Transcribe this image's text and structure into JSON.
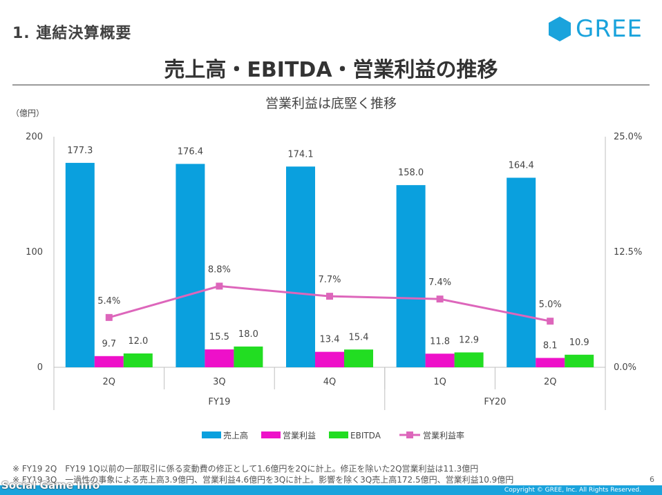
{
  "slide": {
    "section": "1. 連結決算概要",
    "title": "売上高・EBITDA・営業利益の推移",
    "logo_text": "GREE",
    "page": "6",
    "copyright": "Copyright © GREE, Inc. All Rights Reserved.",
    "watermark": "Social Game Info",
    "notes": [
      "※ FY19 2Q　FY19 1Q以前の一部取引に係る変動費の修正として1.6億円を2Qに計上。修正を除いた2Q営業利益は11.3億円",
      "※ FY19 3Q　一過性の事象による売上高3.9億円、営業利益4.6億円を3Qに計上。影響を除く3Q売上高172.5億円、営業利益10.9億円"
    ]
  },
  "chart_data": {
    "type": "bar",
    "title": "営業利益は底堅く推移",
    "ylabel": "（億円）",
    "ylim": [
      0,
      200
    ],
    "y_ticks": [
      "0",
      "100",
      "200"
    ],
    "y2lim": [
      0,
      25
    ],
    "y2_ticks": [
      "0.0%",
      "12.5%",
      "25.0%"
    ],
    "categories": [
      "2Q",
      "3Q",
      "4Q",
      "1Q",
      "2Q"
    ],
    "groups": [
      {
        "label": "FY19",
        "count": 3
      },
      {
        "label": "FY20",
        "count": 2
      }
    ],
    "series": [
      {
        "name": "売上高",
        "color": "#0aa0de",
        "values": [
          177.3,
          176.4,
          174.1,
          158.0,
          164.4
        ],
        "labels": [
          "177.3",
          "176.4",
          "174.1",
          "158.0",
          "164.4"
        ]
      },
      {
        "name": "営業利益",
        "color": "#ee10c9",
        "values": [
          9.7,
          15.5,
          13.4,
          11.8,
          8.1
        ],
        "labels": [
          "9.7",
          "15.5",
          "13.4",
          "11.8",
          "8.1"
        ]
      },
      {
        "name": "EBITDA",
        "color": "#22dd22",
        "values": [
          12.0,
          18.0,
          15.4,
          12.9,
          10.9
        ],
        "labels": [
          "12.0",
          "18.0",
          "15.4",
          "12.9",
          "10.9"
        ]
      }
    ],
    "line_series": {
      "name": "営業利益率",
      "color": "#dd66bb",
      "axis": "right",
      "values": [
        5.4,
        8.8,
        7.7,
        7.4,
        5.0
      ],
      "labels": [
        "5.4%",
        "8.8%",
        "7.7%",
        "7.4%",
        "5.0%"
      ]
    },
    "legend_position": "bottom",
    "grid": false
  }
}
